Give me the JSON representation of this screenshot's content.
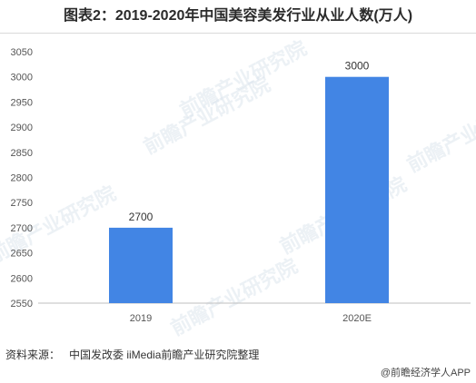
{
  "title": "图表2：2019-2020年中国美容美发行业从业人数(万人)",
  "chart_data": {
    "type": "bar",
    "categories": [
      "2019",
      "2020E"
    ],
    "values": [
      2700,
      3000
    ],
    "data_labels": [
      "2700",
      "3000"
    ],
    "ylim": [
      2550,
      3050
    ],
    "yticks": [
      2550,
      2600,
      2650,
      2700,
      2750,
      2800,
      2850,
      2900,
      2950,
      3000,
      3050
    ],
    "grid": false,
    "bar_color": "#4285e4"
  },
  "footer": {
    "source_label": "资料来源：",
    "source_text": "中国发改委 iiMedia前瞻产业研究院整理",
    "brand": "@前瞻经济学人APP"
  },
  "watermark": {
    "text": "前瞻产业研究院"
  }
}
